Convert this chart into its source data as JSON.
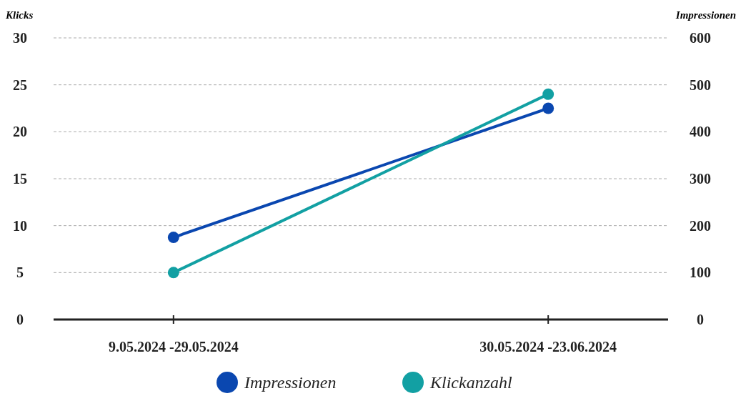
{
  "chart_data": {
    "type": "line",
    "ylabel": "Klicks",
    "y2label": "Impressionen",
    "categories": [
      "9.05.2024 -29.05.2024",
      "30.05.2024 -23.06.2024"
    ],
    "series": [
      {
        "name": "Impressionen",
        "color": "#0a47b0",
        "values": [
          175,
          450
        ],
        "axis": "y2"
      },
      {
        "name": "Klickanzahl",
        "color": "#12a0a3",
        "values": [
          5,
          24
        ]
      }
    ],
    "ylim": [
      0,
      30
    ],
    "yticks": [
      0,
      5,
      10,
      15,
      20,
      25,
      30
    ],
    "y2lim": [
      0,
      600
    ],
    "y2ticks": [
      0,
      100,
      200,
      300,
      400,
      500,
      600
    ],
    "grid": "y",
    "legend": "bottom",
    "marker": "circle",
    "line_style": "solid"
  }
}
